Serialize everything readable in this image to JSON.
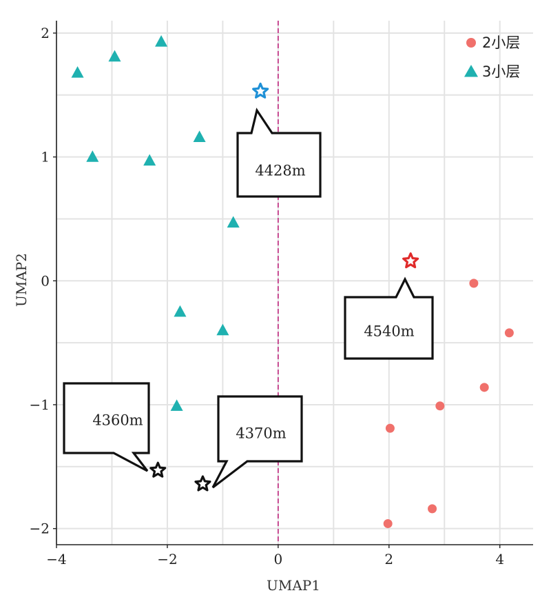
{
  "chart_data": {
    "type": "scatter",
    "xlabel": "UMAP1",
    "ylabel": "UMAP2",
    "xlim": [
      -4,
      4.6
    ],
    "ylim": [
      -2.13,
      2.1
    ],
    "xticks": [
      -4,
      -2,
      0,
      2,
      4
    ],
    "yticks": [
      -2,
      -1,
      0,
      1,
      2
    ],
    "xtick_labels": [
      "−4",
      "−2",
      "0",
      "2",
      "4"
    ],
    "ytick_labels": [
      "−2",
      "−1",
      "0",
      "1",
      "2"
    ],
    "grid": true,
    "vline": {
      "x": 0,
      "color": "#c0267e",
      "style": "dashed"
    },
    "legend": {
      "position": "top-right"
    },
    "series": [
      {
        "name": "2小层",
        "marker": "circle",
        "color": "#f0706b",
        "points": [
          {
            "x": 3.53,
            "y": -0.02
          },
          {
            "x": 4.17,
            "y": -0.42
          },
          {
            "x": 3.72,
            "y": -0.86
          },
          {
            "x": 2.92,
            "y": -1.01
          },
          {
            "x": 2.02,
            "y": -1.19
          },
          {
            "x": 2.78,
            "y": -1.84
          },
          {
            "x": 1.98,
            "y": -1.96
          }
        ]
      },
      {
        "name": "3小层",
        "marker": "triangle",
        "color": "#1fb1b0",
        "points": [
          {
            "x": -2.11,
            "y": 1.93
          },
          {
            "x": -2.95,
            "y": 1.81
          },
          {
            "x": -3.62,
            "y": 1.68
          },
          {
            "x": -1.42,
            "y": 1.16
          },
          {
            "x": -3.35,
            "y": 1.0
          },
          {
            "x": -2.32,
            "y": 0.97
          },
          {
            "x": -0.81,
            "y": 0.47
          },
          {
            "x": -1.77,
            "y": -0.25
          },
          {
            "x": -1.0,
            "y": -0.4
          },
          {
            "x": -1.83,
            "y": -1.01
          }
        ]
      }
    ],
    "highlights": [
      {
        "x": -0.32,
        "y": 1.53,
        "color": "#1f90d6",
        "label": "4428m"
      },
      {
        "x": 2.39,
        "y": 0.16,
        "color": "#e02b2b",
        "label": "4540m"
      },
      {
        "x": -2.17,
        "y": -1.53,
        "color": "#111111",
        "label": "4360m"
      },
      {
        "x": -1.36,
        "y": -1.64,
        "color": "#111111",
        "label": "4370m"
      }
    ]
  },
  "colors": {
    "grid": "#e3e3e3",
    "axis": "#222222",
    "callout_border": "#111111"
  }
}
